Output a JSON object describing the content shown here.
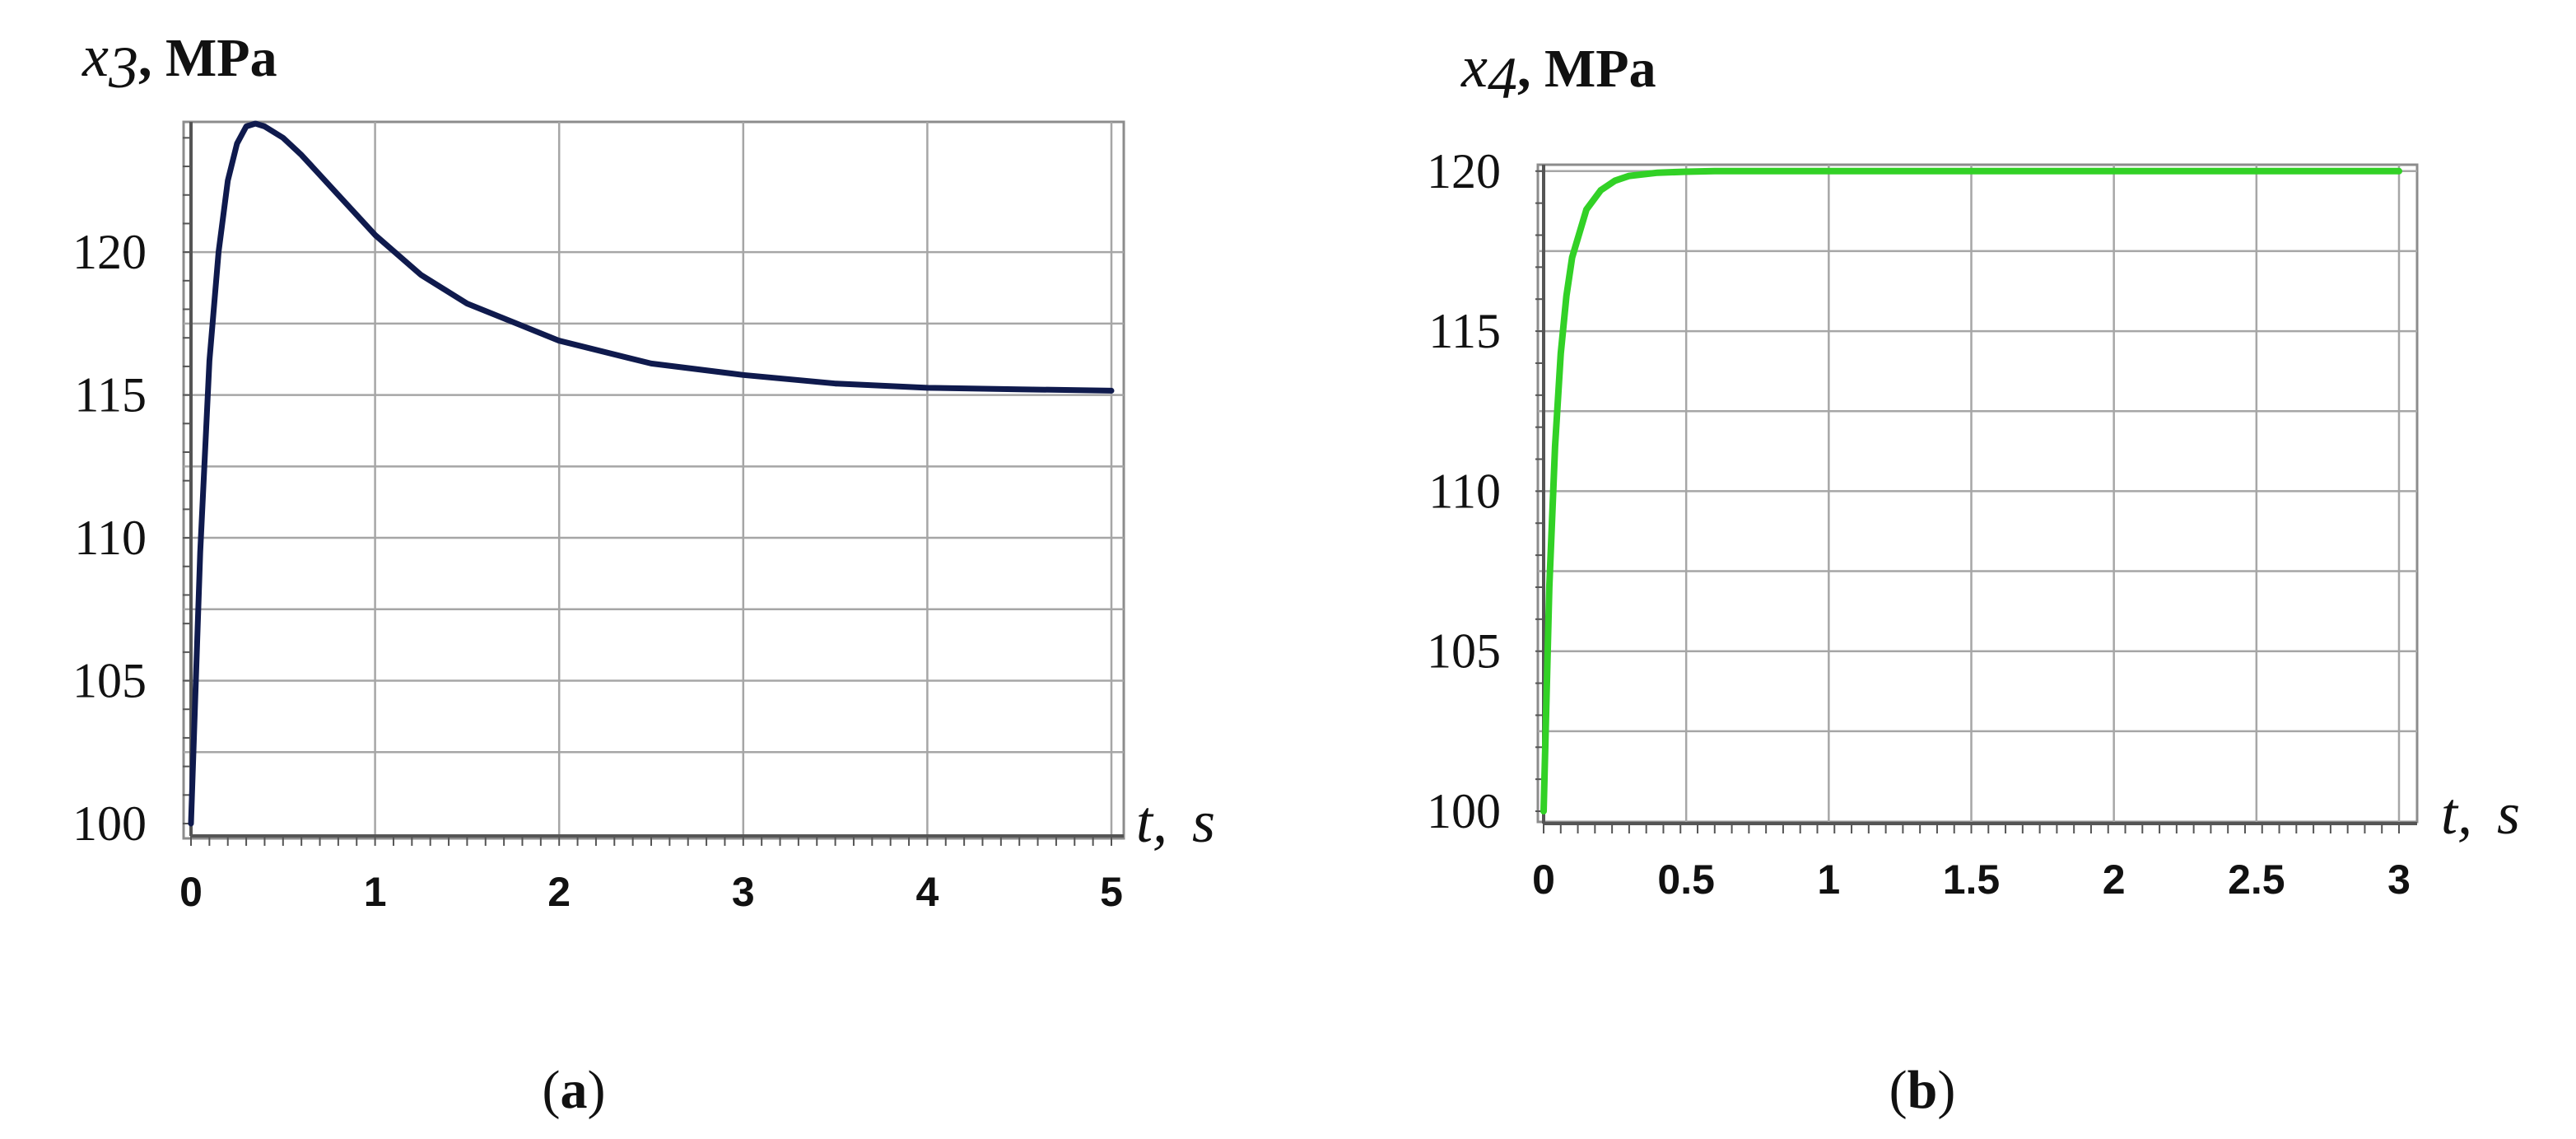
{
  "colors": {
    "series_a": "#0f1a4d",
    "series_b": "#32d126",
    "grid": "#a6a6a6",
    "frame": "#8c8c8c"
  },
  "chart_data": [
    {
      "id": "a",
      "type": "line",
      "panel_label": "a",
      "y_symbol": "x",
      "y_subscript": "3",
      "y_unit": "MPa",
      "x_symbol": "t",
      "x_unit": "s",
      "xlim": [
        0,
        5
      ],
      "ylim": [
        100,
        124.5
      ],
      "x_ticks": [
        0,
        1,
        2,
        3,
        4,
        5
      ],
      "x_tick_labels": [
        "0",
        "1",
        "2",
        "3",
        "4",
        "5"
      ],
      "y_ticks": [
        100,
        105,
        110,
        115,
        120
      ],
      "y_tick_labels": [
        "100",
        "105",
        "110",
        "115",
        "120"
      ],
      "grid": true,
      "series": [
        {
          "x": [
            0,
            0.05,
            0.1,
            0.15,
            0.2,
            0.25,
            0.3,
            0.35,
            0.4,
            0.5,
            0.6,
            0.8,
            1.0,
            1.25,
            1.5,
            2.0,
            2.5,
            3.0,
            3.5,
            4.0,
            4.5,
            5.0
          ],
          "y": [
            100,
            109.5,
            116.2,
            120.0,
            122.5,
            123.8,
            124.4,
            124.5,
            124.4,
            124.0,
            123.4,
            122.0,
            120.6,
            119.2,
            118.2,
            116.9,
            116.1,
            115.7,
            115.4,
            115.25,
            115.2,
            115.15
          ]
        }
      ]
    },
    {
      "id": "b",
      "type": "line",
      "panel_label": "b",
      "y_symbol": "x",
      "y_subscript": "4",
      "y_unit": "MPa",
      "x_symbol": "t",
      "x_unit": "s",
      "xlim": [
        0,
        3
      ],
      "ylim": [
        100,
        120.2
      ],
      "x_ticks": [
        0,
        0.5,
        1,
        1.5,
        2,
        2.5,
        3
      ],
      "x_tick_labels": [
        "0",
        "0.5",
        "1",
        "1.5",
        "2",
        "2.5",
        "3"
      ],
      "y_ticks": [
        100,
        105,
        110,
        115,
        120
      ],
      "y_tick_labels": [
        "100",
        "105",
        "110",
        "115",
        "120"
      ],
      "grid": true,
      "series": [
        {
          "x": [
            0,
            0.02,
            0.04,
            0.06,
            0.08,
            0.1,
            0.15,
            0.2,
            0.25,
            0.3,
            0.4,
            0.5,
            0.6,
            0.8,
            1.0,
            1.5,
            2.0,
            2.5,
            3.0
          ],
          "y": [
            100,
            107.0,
            111.4,
            114.3,
            116.1,
            117.3,
            118.8,
            119.4,
            119.7,
            119.85,
            119.95,
            119.98,
            120.0,
            120.0,
            120.0,
            120.0,
            120.0,
            120.0,
            120.0
          ]
        }
      ]
    }
  ]
}
